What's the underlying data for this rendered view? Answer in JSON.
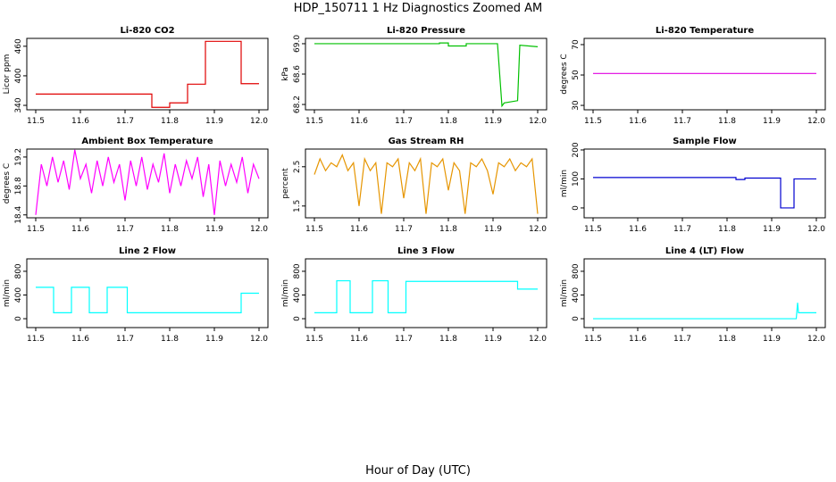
{
  "title": "HDP_150711  1 Hz Diagnostics Zoomed AM",
  "xlabel": "Hour of Day (UTC)",
  "chart_data": [
    {
      "type": "line",
      "title": "Li-820 CO2",
      "ylabel": "Licor ppm",
      "color": "#e00000",
      "x": [
        11.5,
        11.76,
        11.76,
        11.8,
        11.8,
        11.84,
        11.84,
        11.88,
        11.88,
        11.96,
        11.96,
        12.0
      ],
      "values": [
        363,
        363,
        336,
        336,
        345,
        345,
        383,
        383,
        470,
        470,
        384,
        384
      ],
      "xlim": [
        11.48,
        12.02
      ],
      "xticks": [
        11.5,
        11.6,
        11.7,
        11.8,
        11.9,
        {
          "value": 12,
          "label": "12.0"
        }
      ],
      "ylim": [
        331,
        476
      ],
      "yticks": [
        340,
        400,
        460
      ]
    },
    {
      "type": "line",
      "title": "Li-820 Pressure",
      "ylabel": "kPa",
      "color": "#00c000",
      "x": [
        11.5,
        11.78,
        11.78,
        11.8,
        11.8,
        11.84,
        11.84,
        11.91,
        11.92,
        11.925,
        11.955,
        11.96,
        12.0
      ],
      "values": [
        69.0,
        69.0,
        69.01,
        69.01,
        68.97,
        68.97,
        69.0,
        69.0,
        68.18,
        68.22,
        68.25,
        68.98,
        68.96
      ],
      "xlim": [
        11.48,
        12.02
      ],
      "xticks": [
        11.5,
        11.6,
        11.7,
        11.8,
        11.9,
        {
          "value": 12,
          "label": "12.0"
        }
      ],
      "ylim": [
        68.13,
        69.07
      ],
      "yticks": [
        68.2,
        68.6,
        {
          "value": 69,
          "label": "69.0"
        }
      ]
    },
    {
      "type": "line",
      "title": "Li-820 Temperature",
      "ylabel": "degrees C",
      "color": "#e000e0",
      "x": [
        11.5,
        12.0
      ],
      "values": [
        51,
        51
      ],
      "xlim": [
        11.48,
        12.02
      ],
      "xticks": [
        11.5,
        11.6,
        11.7,
        11.8,
        11.9,
        {
          "value": 12,
          "label": "12.0"
        }
      ],
      "ylim": [
        27.1,
        74.1
      ],
      "yticks": [
        30,
        50,
        70
      ]
    },
    {
      "type": "line",
      "title": "Ambient Box Temperature",
      "ylabel": "degrees C",
      "color": "#ff00ff",
      "x": [
        11.5,
        11.5125,
        11.525,
        11.5375,
        11.55,
        11.5625,
        11.575,
        11.5875,
        11.6,
        11.6125,
        11.625,
        11.6375,
        11.65,
        11.6625,
        11.675,
        11.6875,
        11.7,
        11.7125,
        11.725,
        11.7375,
        11.75,
        11.7625,
        11.775,
        11.7875,
        11.8,
        11.8125,
        11.825,
        11.8375,
        11.85,
        11.8625,
        11.875,
        11.8875,
        11.9,
        11.9125,
        11.925,
        11.9375,
        11.95,
        11.9625,
        11.975,
        11.9875,
        12.0
      ],
      "values": [
        18.4,
        19.1,
        18.8,
        19.2,
        18.85,
        19.15,
        18.75,
        19.3,
        18.9,
        19.1,
        18.7,
        19.15,
        18.8,
        19.2,
        18.85,
        19.1,
        18.6,
        19.15,
        18.8,
        19.2,
        18.75,
        19.1,
        18.85,
        19.25,
        18.7,
        19.1,
        18.8,
        19.15,
        18.9,
        19.2,
        18.65,
        19.1,
        18.4,
        19.15,
        18.8,
        19.1,
        18.85,
        19.2,
        18.7,
        19.1,
        18.9
      ],
      "xlim": [
        11.48,
        12.02
      ],
      "xticks": [
        11.5,
        11.6,
        11.7,
        11.8,
        11.9,
        {
          "value": 12,
          "label": "12.0"
        }
      ],
      "ylim": [
        18.36,
        19.31
      ],
      "yticks": [
        18.4,
        18.8,
        19.2
      ]
    },
    {
      "type": "line",
      "title": "Gas Stream RH",
      "ylabel": "percent",
      "color": "#e69500",
      "x": [
        11.5,
        11.5125,
        11.525,
        11.5375,
        11.55,
        11.5625,
        11.575,
        11.5875,
        11.6,
        11.6125,
        11.625,
        11.6375,
        11.65,
        11.6625,
        11.675,
        11.6875,
        11.7,
        11.7125,
        11.725,
        11.7375,
        11.75,
        11.7625,
        11.775,
        11.7875,
        11.8,
        11.8125,
        11.825,
        11.8375,
        11.85,
        11.8625,
        11.875,
        11.8875,
        11.9,
        11.9125,
        11.925,
        11.9375,
        11.95,
        11.9625,
        11.975,
        11.9875,
        12.0
      ],
      "values": [
        2.3,
        2.7,
        2.4,
        2.6,
        2.5,
        2.8,
        2.4,
        2.6,
        1.5,
        2.7,
        2.4,
        2.6,
        1.3,
        2.6,
        2.5,
        2.7,
        1.7,
        2.6,
        2.4,
        2.7,
        1.3,
        2.6,
        2.5,
        2.7,
        1.9,
        2.6,
        2.4,
        1.3,
        2.6,
        2.5,
        2.7,
        2.4,
        1.8,
        2.6,
        2.5,
        2.7,
        2.4,
        2.6,
        2.5,
        2.7,
        1.3
      ],
      "xlim": [
        11.48,
        12.02
      ],
      "xticks": [
        11.5,
        11.6,
        11.7,
        11.8,
        11.9,
        {
          "value": 12,
          "label": "12.0"
        }
      ],
      "ylim": [
        1.2,
        2.95
      ],
      "yticks": [
        1.5,
        2.5
      ]
    },
    {
      "type": "line",
      "title": "Sample Flow",
      "ylabel": "ml/min",
      "color": "#0000d0",
      "x": [
        11.5,
        11.82,
        11.82,
        11.84,
        11.84,
        11.92,
        11.92,
        11.95,
        11.95,
        12.0
      ],
      "values": [
        105,
        105,
        98,
        98,
        103,
        103,
        0,
        0,
        100,
        100
      ],
      "xlim": [
        11.48,
        12.02
      ],
      "xticks": [
        11.5,
        11.6,
        11.7,
        11.8,
        11.9,
        {
          "value": 12,
          "label": "12.0"
        }
      ],
      "ylim": [
        -34,
        203
      ],
      "yticks": [
        0,
        100,
        200
      ]
    },
    {
      "type": "line",
      "title": "Line 2 Flow",
      "ylabel": "ml/min",
      "color": "#00ffff",
      "x": [
        11.5,
        11.54,
        11.54,
        11.58,
        11.58,
        11.62,
        11.62,
        11.66,
        11.66,
        11.705,
        11.705,
        11.96,
        11.96,
        12.0
      ],
      "values": [
        530,
        530,
        100,
        100,
        530,
        530,
        100,
        100,
        530,
        530,
        100,
        100,
        430,
        430
      ],
      "xlim": [
        11.48,
        12.02
      ],
      "xticks": [
        11.5,
        11.6,
        11.7,
        11.8,
        11.9,
        {
          "value": 12,
          "label": "12.0"
        }
      ],
      "ylim": [
        -150,
        1010
      ],
      "yticks": [
        0,
        400,
        800
      ]
    },
    {
      "type": "line",
      "title": "Line 3 Flow",
      "ylabel": "ml/min",
      "color": "#00ffff",
      "x": [
        11.5,
        11.55,
        11.55,
        11.58,
        11.58,
        11.63,
        11.63,
        11.665,
        11.665,
        11.705,
        11.705,
        11.955,
        11.955,
        12.0
      ],
      "values": [
        100,
        100,
        640,
        640,
        100,
        100,
        640,
        640,
        100,
        100,
        630,
        630,
        500,
        500
      ],
      "xlim": [
        11.48,
        12.02
      ],
      "xticks": [
        11.5,
        11.6,
        11.7,
        11.8,
        11.9,
        {
          "value": 12,
          "label": "12.0"
        }
      ],
      "ylim": [
        -150,
        1010
      ],
      "yticks": [
        0,
        400,
        800
      ]
    },
    {
      "type": "line",
      "title": "Line 4 (LT) Flow",
      "ylabel": "ml/min",
      "color": "#00ffff",
      "x": [
        11.5,
        11.955,
        11.958,
        11.96,
        12.0
      ],
      "values": [
        0,
        0,
        270,
        100,
        100
      ],
      "xlim": [
        11.48,
        12.02
      ],
      "xticks": [
        11.5,
        11.6,
        11.7,
        11.8,
        11.9,
        {
          "value": 12,
          "label": "12.0"
        }
      ],
      "ylim": [
        -150,
        1010
      ],
      "yticks": [
        0,
        400,
        800
      ]
    }
  ]
}
